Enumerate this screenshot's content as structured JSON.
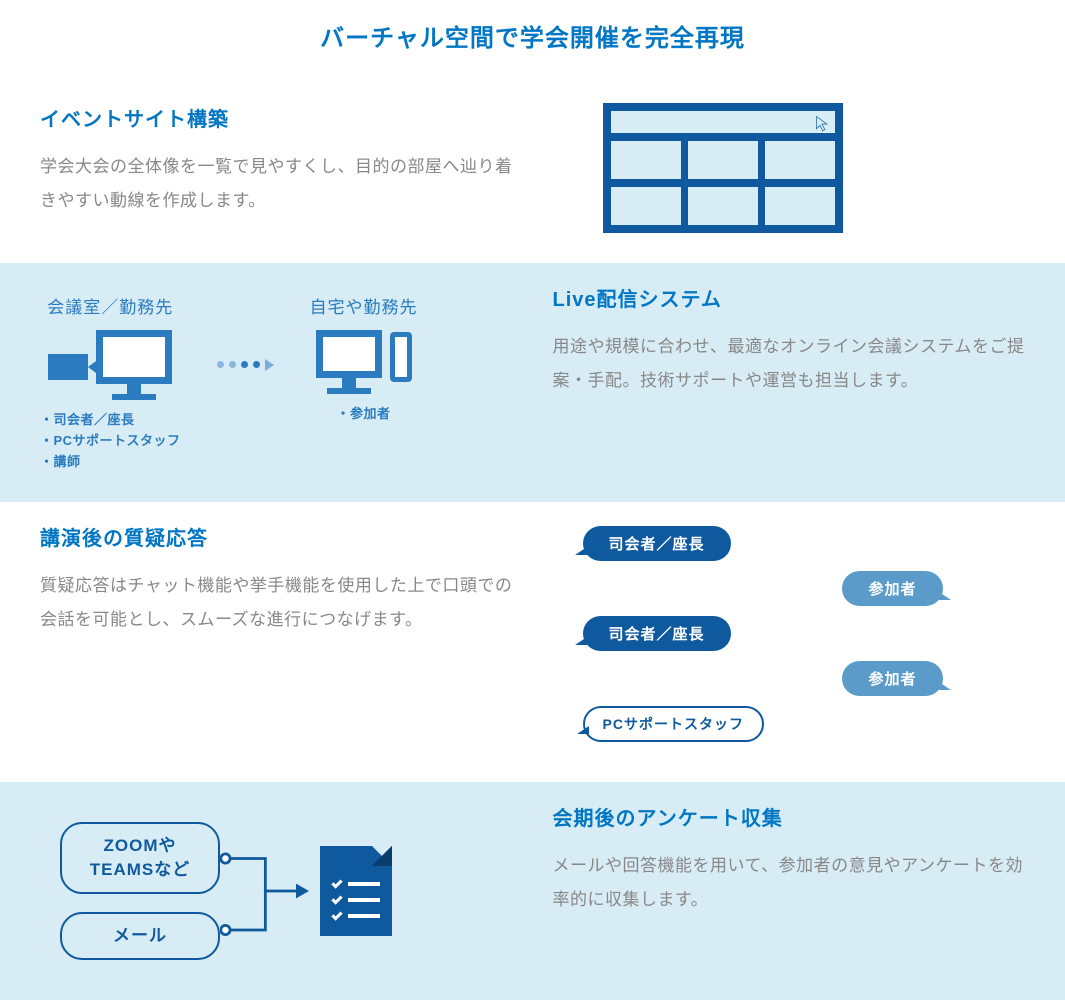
{
  "colors": {
    "accent": "#0076c4",
    "accent_dark": "#0f5a9e",
    "accent_mid": "#2a7bbf",
    "accent_light": "#5a9bc9",
    "panel_blue": "#d7ecf5",
    "text_body": "#888888"
  },
  "main_title": "バーチャル空間で学会開催を完全再現",
  "sections": [
    {
      "title": "イベントサイト構築",
      "body": "学会大会の全体像を一覧で見やすくし、目的の部屋へ辿り着きやすい動線を作成します。"
    },
    {
      "title": "Live配信システム",
      "body": "用途や規模に合わせ、最適なオンライン会議システムをご提案・手配。技術サポートや運営も担当します。",
      "left_label": "会議室／勤務先",
      "right_label": "自宅や勤務先",
      "roles_left": [
        "・司会者／座長",
        "・PCサポートスタッフ",
        "・講師"
      ],
      "roles_right": "・参加者"
    },
    {
      "title": "講演後の質疑応答",
      "body": "質疑応答はチャット機能や挙手機能を使用した上で口頭での会話を可能とし、スムーズな進行につなげます。",
      "bubbles": [
        {
          "text": "司会者／座長",
          "side": "left",
          "bg": "#0f5a9e"
        },
        {
          "text": "参加者",
          "side": "right",
          "bg": "#5a9bc9"
        },
        {
          "text": "司会者／座長",
          "side": "left",
          "bg": "#0f5a9e"
        },
        {
          "text": "参加者",
          "side": "right",
          "bg": "#5a9bc9"
        },
        {
          "text": "PCサポートスタッフ",
          "side": "left",
          "outline": true,
          "color": "#0f5a9e"
        }
      ]
    },
    {
      "title": "会期後のアンケート収集",
      "body": "メールや回答機能を用いて、参加者の意見やアンケートを効率的に収集します。",
      "box1_line1": "ZOOMや",
      "box1_line2": "TEAMSなど",
      "box2": "メール"
    }
  ]
}
